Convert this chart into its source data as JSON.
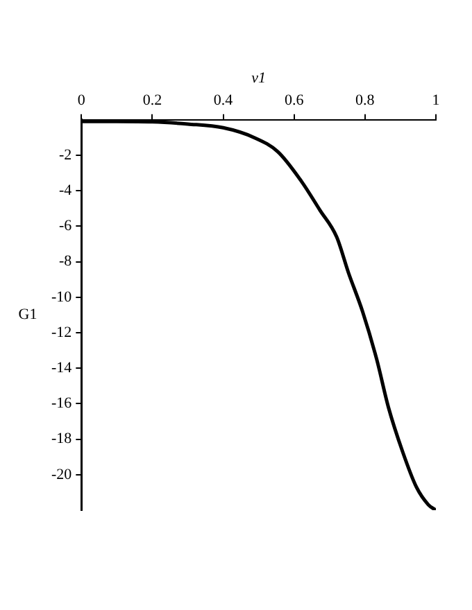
{
  "chart_data": {
    "type": "line",
    "xlabel": "v1",
    "ylabel": "G1",
    "color": "#000000",
    "x": [
      0,
      0.1,
      0.2,
      0.3,
      0.4,
      0.487,
      0.554,
      0.62,
      0.673,
      0.72,
      0.753,
      0.793,
      0.833,
      0.866,
      0.906,
      0.945,
      0.979,
      1
    ],
    "values": [
      -0.1,
      -0.1,
      -0.12,
      -0.24,
      -0.45,
      -1.0,
      -1.8,
      -3.45,
      -5.1,
      -6.6,
      -8.6,
      -10.8,
      -13.5,
      -16.2,
      -18.7,
      -20.7,
      -21.7,
      -22.0
    ],
    "xlim": [
      0,
      1
    ],
    "xticks": [
      0,
      0.2,
      0.4,
      0.6,
      0.8,
      1
    ],
    "ylim": [
      -22,
      0
    ],
    "yticks": [
      -2,
      -4,
      -6,
      -8,
      -10,
      -12,
      -14,
      -16,
      -18,
      -20
    ],
    "grid": false,
    "legend": false,
    "marker": "none",
    "line_style": "solid"
  }
}
